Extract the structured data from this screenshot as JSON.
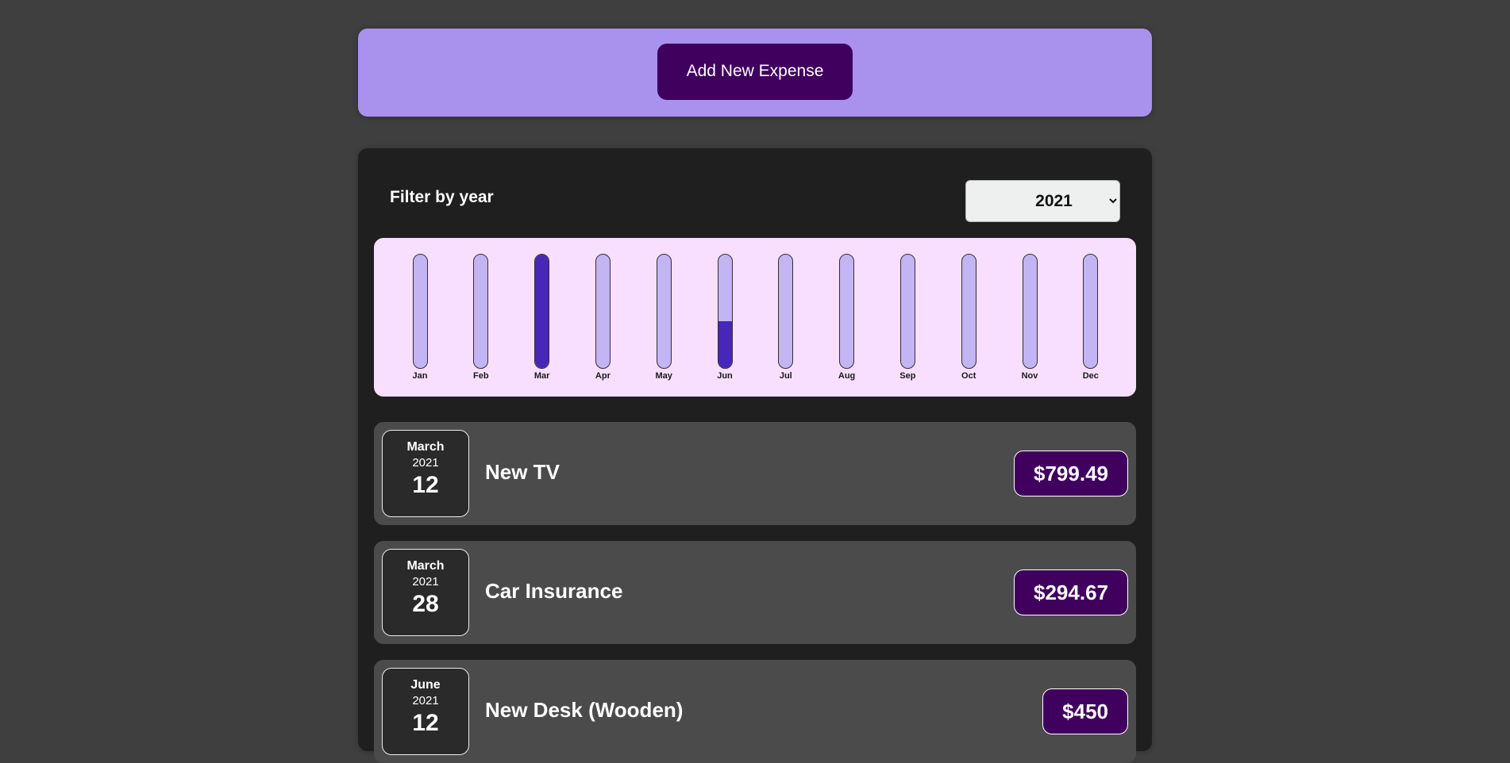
{
  "new_expense": {
    "add_button_label": "Add New Expense"
  },
  "filter": {
    "label": "Filter by year",
    "selected_year": "2021"
  },
  "chart_data": {
    "type": "bar",
    "categories": [
      "Jan",
      "Feb",
      "Mar",
      "Apr",
      "May",
      "Jun",
      "Jul",
      "Aug",
      "Sep",
      "Oct",
      "Nov",
      "Dec"
    ],
    "values": [
      0,
      0,
      1094.16,
      0,
      0,
      450,
      0,
      0,
      0,
      0,
      0,
      0
    ],
    "ylim": [
      0,
      1094.16
    ],
    "fill_color": "#4826b9",
    "track_color": "#c3b4f3"
  },
  "expenses": [
    {
      "month": "March",
      "year": "2021",
      "day": "12",
      "title": "New TV",
      "amount": "$799.49"
    },
    {
      "month": "March",
      "year": "2021",
      "day": "28",
      "title": "Car Insurance",
      "amount": "$294.67"
    },
    {
      "month": "June",
      "year": "2021",
      "day": "12",
      "title": "New Desk (Wooden)",
      "amount": "$450"
    }
  ],
  "colors": {
    "page_background": "#3f3f3f",
    "new_expense_panel": "#a892ee",
    "primary_button": "#40005d",
    "expenses_panel": "#1f1f1f",
    "chart_background": "#f8dfff",
    "expense_item": "#4b4b4b"
  }
}
